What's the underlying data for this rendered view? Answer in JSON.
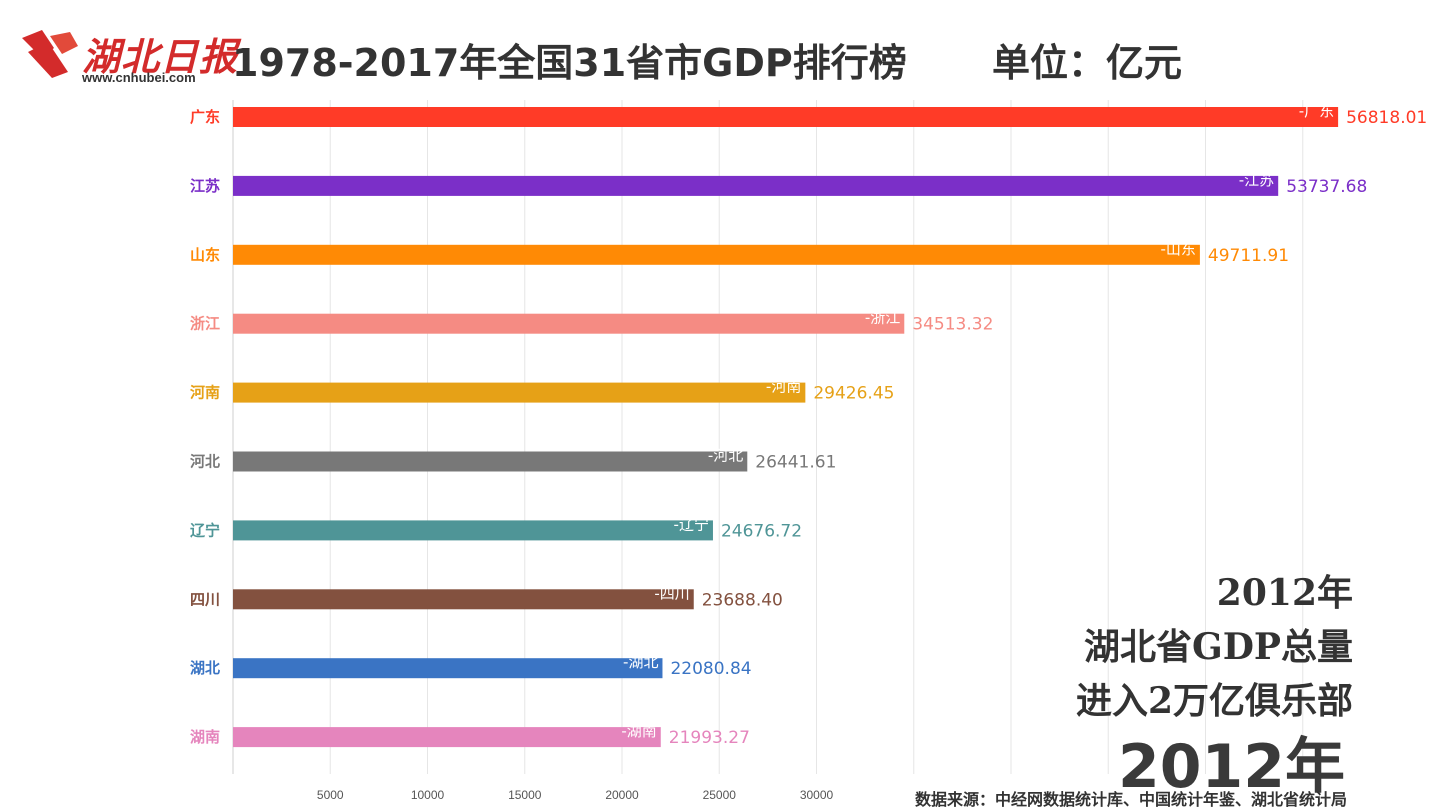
{
  "logo": {
    "brand": "湖北日报",
    "url": "www.cnhubei.com"
  },
  "header": {
    "title": "1978-2017年全国31省市GDP排行榜",
    "unit": "单位：亿元"
  },
  "caption": {
    "lines": [
      "2012年",
      "湖北省GDP总量",
      "进入2万亿俱乐部"
    ]
  },
  "year": "2012年",
  "source": "数据来源：中经网数据统计库、中国统计年鉴、湖北省统计局",
  "chart_data": {
    "type": "bar",
    "orientation": "horizontal",
    "categories": [
      "广东",
      "江苏",
      "山东",
      "浙江",
      "河南",
      "河北",
      "辽宁",
      "四川",
      "湖北",
      "湖南"
    ],
    "values": [
      56818.01,
      53737.68,
      49711.91,
      34513.32,
      29426.45,
      26441.61,
      24676.72,
      23688.4,
      22080.84,
      21993.27
    ],
    "value_labels": [
      "56818.01",
      "53737.68",
      "49711.91",
      "34513.32",
      "29426.45",
      "26441.61",
      "24676.72",
      "23688.40",
      "22080.84",
      "21993.27"
    ],
    "bar_labels": [
      "-广东",
      "-江苏",
      "-山东",
      "-浙江",
      "-河南",
      "-河北",
      "-辽宁",
      "-四川",
      "-湖北",
      "-湖南"
    ],
    "colors": [
      "#ff3b27",
      "#7b2fc8",
      "#ff8a05",
      "#f58b83",
      "#e6a117",
      "#787878",
      "#4f9597",
      "#83513f",
      "#3a74c4",
      "#e585bd"
    ],
    "xticks": [
      "5000",
      "10000",
      "15000",
      "20000",
      "25000",
      "30000"
    ],
    "xlim": [
      0,
      60000
    ],
    "grid": true
  }
}
